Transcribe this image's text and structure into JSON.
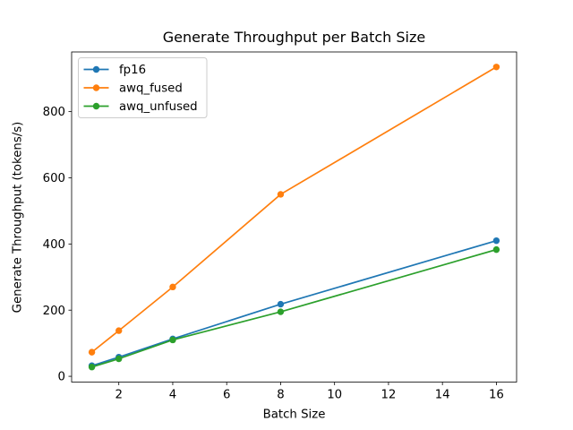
{
  "figure": {
    "background": "#ffffff"
  },
  "chart_data": {
    "type": "line",
    "title": "Generate Throughput per Batch Size",
    "xlabel": "Batch Size",
    "ylabel": "Generate Throughput (tokens/s)",
    "x": [
      1,
      2,
      4,
      8,
      16
    ],
    "series": [
      {
        "name": "fp16",
        "color": "#1f77b4",
        "values": [
          32,
          58,
          113,
          218,
          410
        ]
      },
      {
        "name": "awq_fused",
        "color": "#ff7f0e",
        "values": [
          73,
          138,
          270,
          550,
          935
        ]
      },
      {
        "name": "awq_unfused",
        "color": "#2ca02c",
        "values": [
          28,
          53,
          110,
          195,
          383
        ]
      }
    ],
    "xticks": [
      2,
      4,
      6,
      8,
      10,
      12,
      14,
      16
    ],
    "yticks": [
      0,
      200,
      400,
      600,
      800
    ],
    "xlim": [
      0.25,
      16.75
    ],
    "ylim": [
      -17.4,
      980.4
    ],
    "grid": false,
    "marker": "circle",
    "line_width": 1.7,
    "marker_radius": 3.7,
    "axis_color": "#000000",
    "legend": {
      "position": "upper-left",
      "background": "#ffffff",
      "border_color": "#cccccc"
    }
  }
}
